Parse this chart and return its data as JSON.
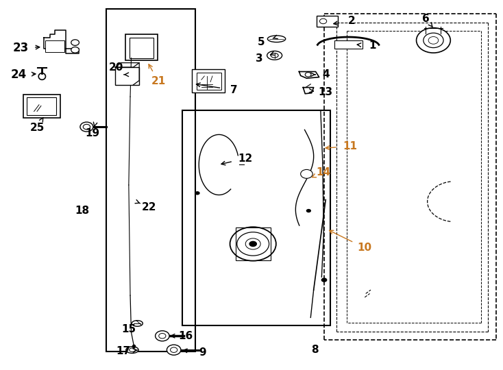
{
  "bg_color": "#ffffff",
  "line_color": "#000000",
  "label_color_orange": "#c87820",
  "label_color_black": "#000000",
  "orange_ids": [
    "10",
    "11",
    "14",
    "21"
  ],
  "labels": {
    "1": [
      0.742,
      0.878,
      0.705,
      0.882
    ],
    "2": [
      0.7,
      0.945,
      0.658,
      0.937
    ],
    "3": [
      0.516,
      0.843,
      0.536,
      0.853
    ],
    "4": [
      0.648,
      0.8,
      0.628,
      0.8
    ],
    "5": [
      0.52,
      0.888,
      0.542,
      0.898
    ],
    "6": [
      0.848,
      0.952,
      0.862,
      0.928
    ],
    "7": [
      0.465,
      0.758,
      0.384,
      0.775
    ],
    "8": [
      0.626,
      0.052,
      null,
      null
    ],
    "9": [
      0.402,
      0.045,
      0.358,
      0.052
    ],
    "10": [
      0.725,
      0.33,
      0.65,
      0.38
    ],
    "11": [
      0.697,
      0.605,
      0.642,
      0.6
    ],
    "12": [
      0.487,
      0.572,
      0.434,
      0.555
    ],
    "13": [
      0.648,
      0.752,
      0.625,
      0.755
    ],
    "14": [
      0.643,
      0.535,
      0.619,
      0.52
    ],
    "15": [
      0.255,
      0.108,
      0.27,
      0.128
    ],
    "16": [
      0.368,
      0.09,
      0.337,
      0.09
    ],
    "17": [
      0.244,
      0.048,
      0.277,
      0.052
    ],
    "18": [
      0.162,
      0.43,
      null,
      null
    ],
    "19": [
      0.183,
      0.64,
      0.186,
      0.657
    ],
    "20": [
      0.23,
      0.82,
      0.245,
      0.8
    ],
    "21": [
      0.314,
      0.782,
      0.292,
      0.835
    ],
    "22": [
      0.296,
      0.44,
      0.278,
      0.45
    ],
    "23": [
      0.04,
      0.872,
      0.083,
      0.875
    ],
    "24": [
      0.035,
      0.8,
      0.075,
      0.802
    ],
    "25": [
      0.072,
      0.655,
      0.085,
      0.685
    ]
  }
}
